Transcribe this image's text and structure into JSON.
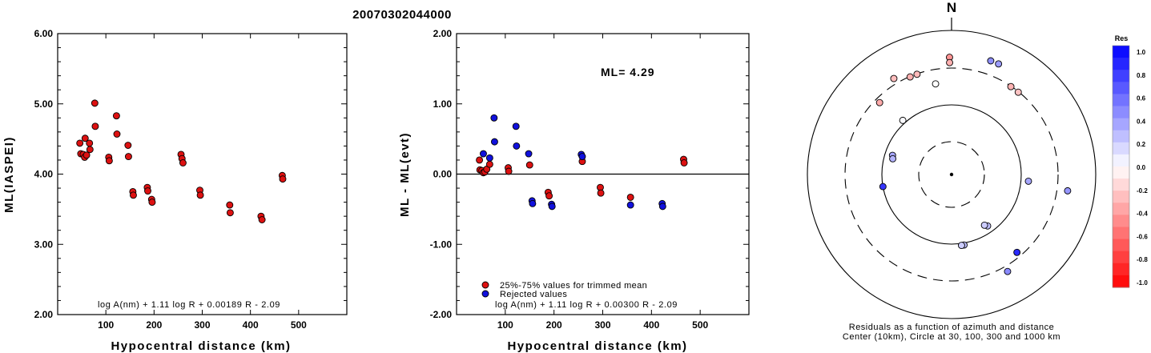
{
  "title": "20070302044000",
  "chart_data": [
    {
      "type": "scatter",
      "xlabel": "Hypocentral distance (km)",
      "ylabel": "ML(IASPEI)",
      "xlim": [
        0,
        600
      ],
      "ylim": [
        2.0,
        6.0
      ],
      "xticks": [
        100,
        200,
        300,
        400,
        500
      ],
      "yticks": [
        2.0,
        3.0,
        4.0,
        5.0,
        6.0
      ],
      "xtick_labels": [
        "100",
        "200",
        "300",
        "400",
        "500"
      ],
      "ytick_labels": [
        "2.00",
        "3.00",
        "4.00",
        "5.00",
        "6.00"
      ],
      "formula": "log A(nm) + 1.11 log R + 0.00189 R - 2.09",
      "grid": false,
      "series": [
        {
          "color": "#dd1111",
          "points": [
            [
              46,
              4.44
            ],
            [
              48,
              4.29
            ],
            [
              53,
              4.28
            ],
            [
              56,
              4.24
            ],
            [
              57,
              4.51
            ],
            [
              60,
              4.27
            ],
            [
              66,
              4.44
            ],
            [
              67,
              4.35
            ],
            [
              77,
              5.01
            ],
            [
              78,
              4.68
            ],
            [
              106,
              4.24
            ],
            [
              107,
              4.19
            ],
            [
              122,
              4.83
            ],
            [
              123,
              4.57
            ],
            [
              146,
              4.41
            ],
            [
              147,
              4.25
            ],
            [
              156,
              3.75
            ],
            [
              157,
              3.7
            ],
            [
              186,
              3.81
            ],
            [
              187,
              3.76
            ],
            [
              195,
              3.64
            ],
            [
              196,
              3.6
            ],
            [
              256,
              4.28
            ],
            [
              258,
              4.22
            ],
            [
              260,
              4.16
            ],
            [
              295,
              3.77
            ],
            [
              296,
              3.7
            ],
            [
              357,
              3.56
            ],
            [
              358,
              3.45
            ],
            [
              422,
              3.4
            ],
            [
              424,
              3.35
            ],
            [
              466,
              3.98
            ],
            [
              467,
              3.93
            ]
          ]
        }
      ]
    },
    {
      "type": "scatter",
      "xlabel": "Hypocentral distance (km)",
      "ylabel": "ML - ML(evt)",
      "xlim": [
        0,
        600
      ],
      "ylim": [
        -2.0,
        2.0
      ],
      "xticks": [
        100,
        200,
        300,
        400,
        500
      ],
      "yticks": [
        -2.0,
        -1.0,
        0.0,
        1.0,
        2.0
      ],
      "xtick_labels": [
        "100",
        "200",
        "300",
        "400",
        "500"
      ],
      "ytick_labels": [
        "-2.00",
        "-1.00",
        "0.00",
        "1.00",
        "2.00"
      ],
      "zero_line": 0.0,
      "annotation": "ML= 4.29",
      "formula": "log A(nm) + 1.11 log R + 0.00300 R - 2.09",
      "legend": [
        "25%-75% values for trimmed mean",
        "Rejected values"
      ],
      "grid": false,
      "series": [
        {
          "name": "25%-75% values for trimmed mean",
          "color": "#dd1111",
          "points": [
            [
              47,
              0.2
            ],
            [
              48,
              0.06
            ],
            [
              52,
              0.05
            ],
            [
              55,
              0.02
            ],
            [
              58,
              0.03
            ],
            [
              62,
              0.07
            ],
            [
              68,
              0.14
            ],
            [
              106,
              0.09
            ],
            [
              107,
              0.04
            ],
            [
              150,
              0.13
            ],
            [
              188,
              -0.26
            ],
            [
              190,
              -0.31
            ],
            [
              258,
              0.18
            ],
            [
              295,
              -0.19
            ],
            [
              296,
              -0.27
            ],
            [
              357,
              -0.33
            ],
            [
              466,
              0.21
            ],
            [
              467,
              0.16
            ]
          ]
        },
        {
          "name": "Rejected values",
          "color": "#1111dd",
          "points": [
            [
              55,
              0.29
            ],
            [
              68,
              0.23
            ],
            [
              77,
              0.8
            ],
            [
              78,
              0.46
            ],
            [
              122,
              0.68
            ],
            [
              123,
              0.4
            ],
            [
              148,
              0.29
            ],
            [
              155,
              -0.38
            ],
            [
              156,
              -0.42
            ],
            [
              195,
              -0.43
            ],
            [
              196,
              -0.46
            ],
            [
              256,
              0.28
            ],
            [
              258,
              0.25
            ],
            [
              357,
              -0.44
            ],
            [
              422,
              -0.42
            ],
            [
              423,
              -0.46
            ]
          ]
        }
      ]
    },
    {
      "type": "scatter",
      "subtype": "polar-residuals",
      "north_label": "N",
      "caption_line1": "Residuals as a function of azimuth and distance",
      "caption_line2": "Center (10km), Circle at 30, 100, 300 and 1000 km",
      "rings_km": [
        30,
        100,
        300,
        1000
      ],
      "colorbar": {
        "title": "Res",
        "min": -1.0,
        "max": 1.0,
        "ticks": [
          "1.0",
          "0.8",
          "0.6",
          "0.4",
          "0.2",
          "0.0",
          "-0.2",
          "-0.4",
          "-0.6",
          "-0.8",
          "-1.0"
        ]
      },
      "points": [
        {
          "azimuth": -1,
          "distance_km": 423,
          "res": -0.42
        },
        {
          "azimuth": -1,
          "distance_km": 357,
          "res": -0.31
        },
        {
          "azimuth": 19,
          "distance_km": 466,
          "res": 0.44
        },
        {
          "azimuth": 23,
          "distance_km": 465,
          "res": 0.39
        },
        {
          "azimuth": -31,
          "distance_km": 358,
          "res": -0.26
        },
        {
          "azimuth": -23,
          "distance_km": 296,
          "res": -0.31
        },
        {
          "azimuth": -19,
          "distance_km": 296,
          "res": -0.27
        },
        {
          "azimuth": 34,
          "distance_km": 296,
          "res": -0.3
        },
        {
          "azimuth": 39,
          "distance_km": 295,
          "res": -0.24
        },
        {
          "azimuth": -45,
          "distance_km": 260,
          "res": -0.33
        },
        {
          "azimuth": -10,
          "distance_km": 195,
          "res": 0.0
        },
        {
          "azimuth": -42,
          "distance_km": 110,
          "res": 0.02
        },
        {
          "azimuth": -72,
          "distance_km": 78,
          "res": 0.35
        },
        {
          "azimuth": -75,
          "distance_km": 75,
          "res": 0.3
        },
        {
          "azimuth": 95,
          "distance_km": 125,
          "res": 0.35
        },
        {
          "azimuth": -100,
          "distance_km": 100,
          "res": 0.79
        },
        {
          "azimuth": 98,
          "distance_km": 422,
          "res": 0.41
        },
        {
          "azimuth": 145,
          "distance_km": 80,
          "res": 0.25
        },
        {
          "azimuth": 147,
          "distance_km": 74,
          "res": 0.2
        },
        {
          "azimuth": 170,
          "distance_km": 106,
          "res": 0.26
        },
        {
          "azimuth": 172,
          "distance_km": 106,
          "res": 0.2
        },
        {
          "azimuth": 140,
          "distance_km": 260,
          "res": 0.84
        },
        {
          "azimuth": 150,
          "distance_km": 358,
          "res": 0.46
        }
      ]
    }
  ]
}
